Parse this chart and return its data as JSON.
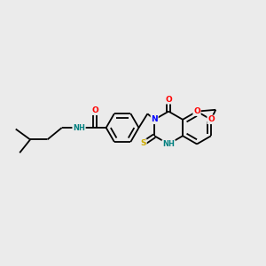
{
  "bg_color": "#ebebeb",
  "bond_color": "#000000",
  "atom_colors": {
    "N": "#0000ff",
    "O": "#ff0000",
    "S": "#ccaa00",
    "NH": "#008080",
    "C": "#000000"
  },
  "bond_width": 1.3,
  "figsize": [
    3.0,
    3.0
  ],
  "dpi": 100,
  "xlim": [
    0,
    10
  ],
  "ylim": [
    2,
    8
  ]
}
